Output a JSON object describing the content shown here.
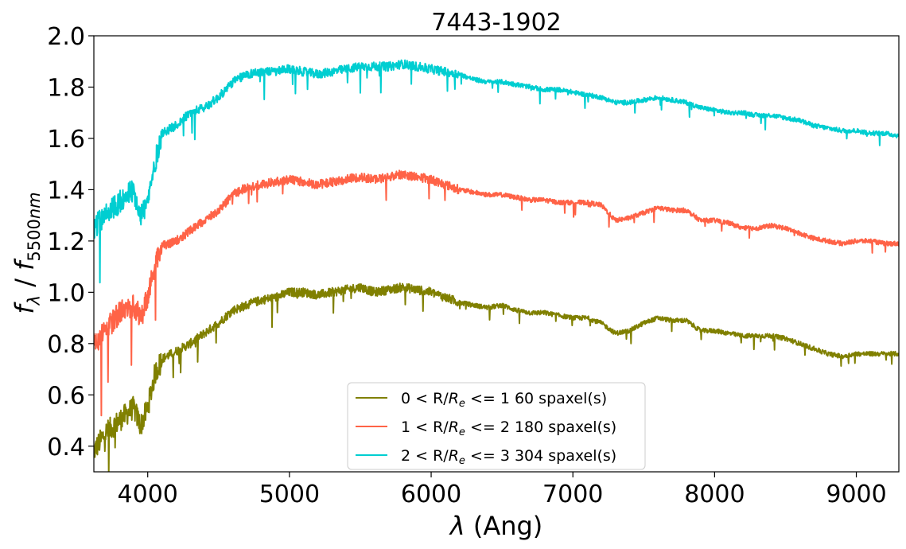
{
  "chart_data": {
    "type": "line",
    "title": "7443-1902",
    "xlabel": "λ (Ang)",
    "ylabel": "fλ / f5500nm",
    "xlim": [
      3620,
      9300
    ],
    "ylim": [
      0.3,
      2.0
    ],
    "xticks": [
      4000,
      5000,
      6000,
      7000,
      8000,
      9000
    ],
    "xtick_labels": [
      "4000",
      "5000",
      "6000",
      "7000",
      "8000",
      "9000"
    ],
    "yticks": [
      0.4,
      0.6,
      0.8,
      1.0,
      1.2,
      1.4,
      1.6,
      1.8,
      2.0
    ],
    "ytick_labels": [
      "0.4",
      "0.6",
      "0.8",
      "1.0",
      "1.2",
      "1.4",
      "1.6",
      "1.8",
      "2.0"
    ],
    "legend_location": "bottom-center",
    "series": [
      {
        "name": "0 < R/Re <= 1 60 spaxel(s)",
        "legend_prefix": "0 < R/",
        "legend_suffix": " <= 1 60 spaxel(s)",
        "color": "#808000",
        "x": [
          3620,
          3700,
          3800,
          3900,
          3950,
          4000,
          4050,
          4100,
          4200,
          4300,
          4400,
          4500,
          4600,
          4700,
          4800,
          4900,
          5000,
          5100,
          5200,
          5300,
          5400,
          5500,
          5600,
          5700,
          5800,
          5900,
          6000,
          6100,
          6200,
          6300,
          6400,
          6500,
          6600,
          6700,
          6800,
          6900,
          7000,
          7100,
          7200,
          7300,
          7400,
          7500,
          7600,
          7700,
          7800,
          7900,
          8000,
          8100,
          8200,
          8300,
          8400,
          8500,
          8600,
          8700,
          8800,
          8900,
          9000,
          9100,
          9200,
          9300
        ],
        "values": [
          0.38,
          0.45,
          0.5,
          0.55,
          0.48,
          0.55,
          0.68,
          0.74,
          0.77,
          0.8,
          0.84,
          0.88,
          0.93,
          0.95,
          0.97,
          0.98,
          1.0,
          1.0,
          0.99,
          1.0,
          1.01,
          1.02,
          1.0,
          1.01,
          1.02,
          1.01,
          1.0,
          0.98,
          0.96,
          0.95,
          0.94,
          0.95,
          0.93,
          0.92,
          0.92,
          0.91,
          0.9,
          0.9,
          0.88,
          0.84,
          0.85,
          0.88,
          0.9,
          0.89,
          0.89,
          0.85,
          0.85,
          0.84,
          0.83,
          0.83,
          0.83,
          0.82,
          0.8,
          0.78,
          0.76,
          0.75,
          0.76,
          0.76,
          0.76,
          0.76
        ]
      },
      {
        "name": "1 < R/Re <= 2 180 spaxel(s)",
        "legend_prefix": "1 < R/",
        "legend_suffix": " <= 2 180 spaxel(s)",
        "color": "#ff6347",
        "x": [
          3620,
          3700,
          3800,
          3900,
          3950,
          4000,
          4050,
          4100,
          4200,
          4300,
          4400,
          4500,
          4600,
          4700,
          4800,
          4900,
          5000,
          5100,
          5200,
          5300,
          5400,
          5500,
          5600,
          5700,
          5800,
          5900,
          6000,
          6100,
          6200,
          6300,
          6400,
          6500,
          6600,
          6700,
          6800,
          6900,
          7000,
          7100,
          7200,
          7300,
          7400,
          7500,
          7600,
          7700,
          7800,
          7900,
          8000,
          8100,
          8200,
          8300,
          8400,
          8500,
          8600,
          8700,
          8800,
          8900,
          9000,
          9100,
          9200,
          9300
        ],
        "values": [
          0.8,
          0.85,
          0.92,
          0.95,
          0.9,
          0.98,
          1.1,
          1.18,
          1.2,
          1.24,
          1.28,
          1.32,
          1.38,
          1.41,
          1.42,
          1.43,
          1.44,
          1.43,
          1.42,
          1.43,
          1.44,
          1.45,
          1.44,
          1.45,
          1.46,
          1.45,
          1.44,
          1.42,
          1.4,
          1.39,
          1.38,
          1.38,
          1.37,
          1.36,
          1.36,
          1.35,
          1.35,
          1.35,
          1.34,
          1.28,
          1.29,
          1.31,
          1.33,
          1.32,
          1.32,
          1.28,
          1.28,
          1.27,
          1.25,
          1.25,
          1.26,
          1.25,
          1.23,
          1.21,
          1.2,
          1.19,
          1.2,
          1.2,
          1.19,
          1.19
        ]
      },
      {
        "name": "2 < R/Re <= 3 304 spaxel(s)",
        "legend_prefix": "2 < R/",
        "legend_suffix": " <= 3 304 spaxel(s)",
        "color": "#00ced1",
        "x": [
          3620,
          3700,
          3800,
          3900,
          3950,
          4000,
          4050,
          4100,
          4200,
          4300,
          4400,
          4500,
          4600,
          4700,
          4800,
          4900,
          5000,
          5100,
          5200,
          5300,
          5400,
          5500,
          5600,
          5700,
          5800,
          5900,
          6000,
          6100,
          6200,
          6300,
          6400,
          6500,
          6600,
          6700,
          6800,
          6900,
          7000,
          7100,
          7200,
          7300,
          7400,
          7500,
          7600,
          7700,
          7800,
          7900,
          8000,
          8100,
          8200,
          8300,
          8400,
          8500,
          8600,
          8700,
          8800,
          8900,
          9000,
          9100,
          9200,
          9300
        ],
        "values": [
          1.25,
          1.3,
          1.35,
          1.4,
          1.3,
          1.35,
          1.5,
          1.62,
          1.65,
          1.7,
          1.72,
          1.76,
          1.82,
          1.85,
          1.86,
          1.86,
          1.87,
          1.86,
          1.85,
          1.86,
          1.87,
          1.88,
          1.88,
          1.88,
          1.89,
          1.88,
          1.87,
          1.86,
          1.85,
          1.83,
          1.82,
          1.82,
          1.81,
          1.8,
          1.79,
          1.79,
          1.78,
          1.77,
          1.76,
          1.74,
          1.74,
          1.75,
          1.76,
          1.75,
          1.74,
          1.72,
          1.71,
          1.7,
          1.7,
          1.69,
          1.69,
          1.68,
          1.67,
          1.65,
          1.64,
          1.63,
          1.63,
          1.62,
          1.62,
          1.61
        ]
      }
    ]
  }
}
